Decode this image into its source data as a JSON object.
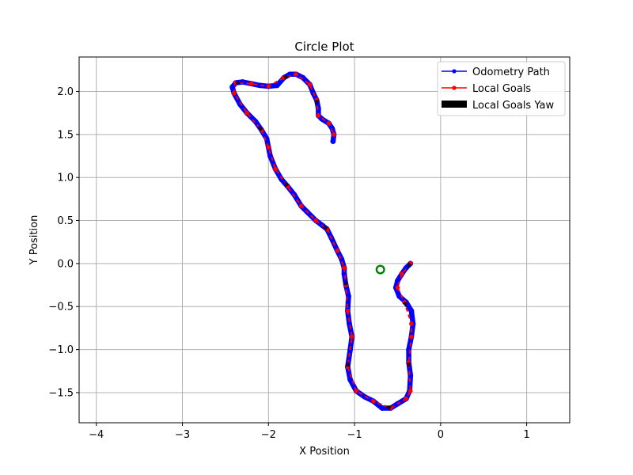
{
  "chart_data": {
    "type": "line",
    "title": "Circle Plot",
    "xlabel": "X Position",
    "ylabel": "Y Position",
    "xlim": [
      -4.2,
      1.5
    ],
    "ylim": [
      -1.85,
      2.4
    ],
    "xticks": [
      -4,
      -3,
      -2,
      -1,
      0,
      1
    ],
    "xtick_labels": [
      "−4",
      "−3",
      "−2",
      "−1",
      "0",
      "1"
    ],
    "yticks": [
      -1.5,
      -1.0,
      -0.5,
      0.0,
      0.5,
      1.0,
      1.5,
      2.0
    ],
    "ytick_labels": [
      "−1.5",
      "−1.0",
      "−0.5",
      "0.0",
      "0.5",
      "1.0",
      "1.5",
      "2.0"
    ],
    "grid": true,
    "legend_position": "top-right",
    "legend": [
      "Odometry Path",
      "Local Goals",
      "Local Goals Yaw"
    ],
    "colors": {
      "odometry": "#0000ff",
      "local_goals": "#ff0000",
      "yaw": "#000000",
      "circle": "#008000",
      "grid": "#b0b0b0"
    },
    "series": [
      {
        "name": "Odometry Path",
        "x": [
          -0.35,
          -0.4,
          -0.45,
          -0.5,
          -0.52,
          -0.48,
          -0.4,
          -0.34,
          -0.32,
          -0.34,
          -0.37,
          -0.37,
          -0.35,
          -0.36,
          -0.4,
          -0.5,
          -0.58,
          -0.68,
          -0.78,
          -0.88,
          -0.98,
          -1.05,
          -1.08,
          -1.05,
          -1.03,
          -1.06,
          -1.08,
          -1.07,
          -1.1,
          -1.12,
          -1.12,
          -1.15,
          -1.2,
          -1.27,
          -1.32,
          -1.37,
          -1.45,
          -1.55,
          -1.62,
          -1.7,
          -1.78,
          -1.85,
          -1.92,
          -1.98,
          -2.0,
          -2.02,
          -2.08,
          -2.15,
          -2.25,
          -2.33,
          -2.4,
          -2.42,
          -2.38,
          -2.3,
          -2.2,
          -2.1,
          -2.0,
          -1.9,
          -1.82,
          -1.75,
          -1.68,
          -1.6,
          -1.52,
          -1.48,
          -1.44,
          -1.42,
          -1.42,
          -1.38,
          -1.3,
          -1.26,
          -1.24,
          -1.25
        ],
        "y": [
          0.0,
          -0.05,
          -0.12,
          -0.2,
          -0.28,
          -0.38,
          -0.45,
          -0.55,
          -0.7,
          -0.85,
          -1.0,
          -1.15,
          -1.3,
          -1.48,
          -1.57,
          -1.63,
          -1.68,
          -1.68,
          -1.6,
          -1.55,
          -1.48,
          -1.35,
          -1.2,
          -1.0,
          -0.85,
          -0.7,
          -0.55,
          -0.38,
          -0.25,
          -0.12,
          -0.05,
          0.05,
          0.15,
          0.3,
          0.4,
          0.44,
          0.5,
          0.6,
          0.67,
          0.8,
          0.9,
          0.98,
          1.1,
          1.25,
          1.35,
          1.45,
          1.55,
          1.65,
          1.75,
          1.85,
          1.98,
          2.05,
          2.1,
          2.11,
          2.09,
          2.07,
          2.06,
          2.07,
          2.16,
          2.2,
          2.2,
          2.16,
          2.08,
          1.98,
          1.9,
          1.8,
          1.72,
          1.68,
          1.63,
          1.57,
          1.5,
          1.42
        ]
      },
      {
        "name": "Local Goals",
        "x": [
          -0.35,
          -0.45,
          -0.5,
          -0.42,
          -0.34,
          -0.34,
          -0.37,
          -0.35,
          -0.4,
          -0.58,
          -0.78,
          -0.98,
          -1.08,
          -1.03,
          -1.08,
          -1.1,
          -1.12,
          -1.2,
          -1.32,
          -1.45,
          -1.62,
          -1.78,
          -1.92,
          -2.0,
          -2.08,
          -2.25,
          -2.4,
          -2.38,
          -2.2,
          -2.0,
          -1.82,
          -1.68,
          -1.52,
          -1.44,
          -1.42,
          -1.3,
          -1.24
        ],
        "y": [
          0.0,
          -0.12,
          -0.28,
          -0.45,
          -0.7,
          -0.85,
          -1.15,
          -1.48,
          -1.57,
          -1.68,
          -1.6,
          -1.48,
          -1.2,
          -0.85,
          -0.55,
          -0.25,
          -0.05,
          0.15,
          0.4,
          0.5,
          0.67,
          0.9,
          1.1,
          1.35,
          1.55,
          1.75,
          1.98,
          2.1,
          2.09,
          2.06,
          2.16,
          2.2,
          2.08,
          1.9,
          1.72,
          1.63,
          1.5
        ]
      }
    ],
    "green_circle": {
      "x": -0.7,
      "y": -0.07
    }
  }
}
